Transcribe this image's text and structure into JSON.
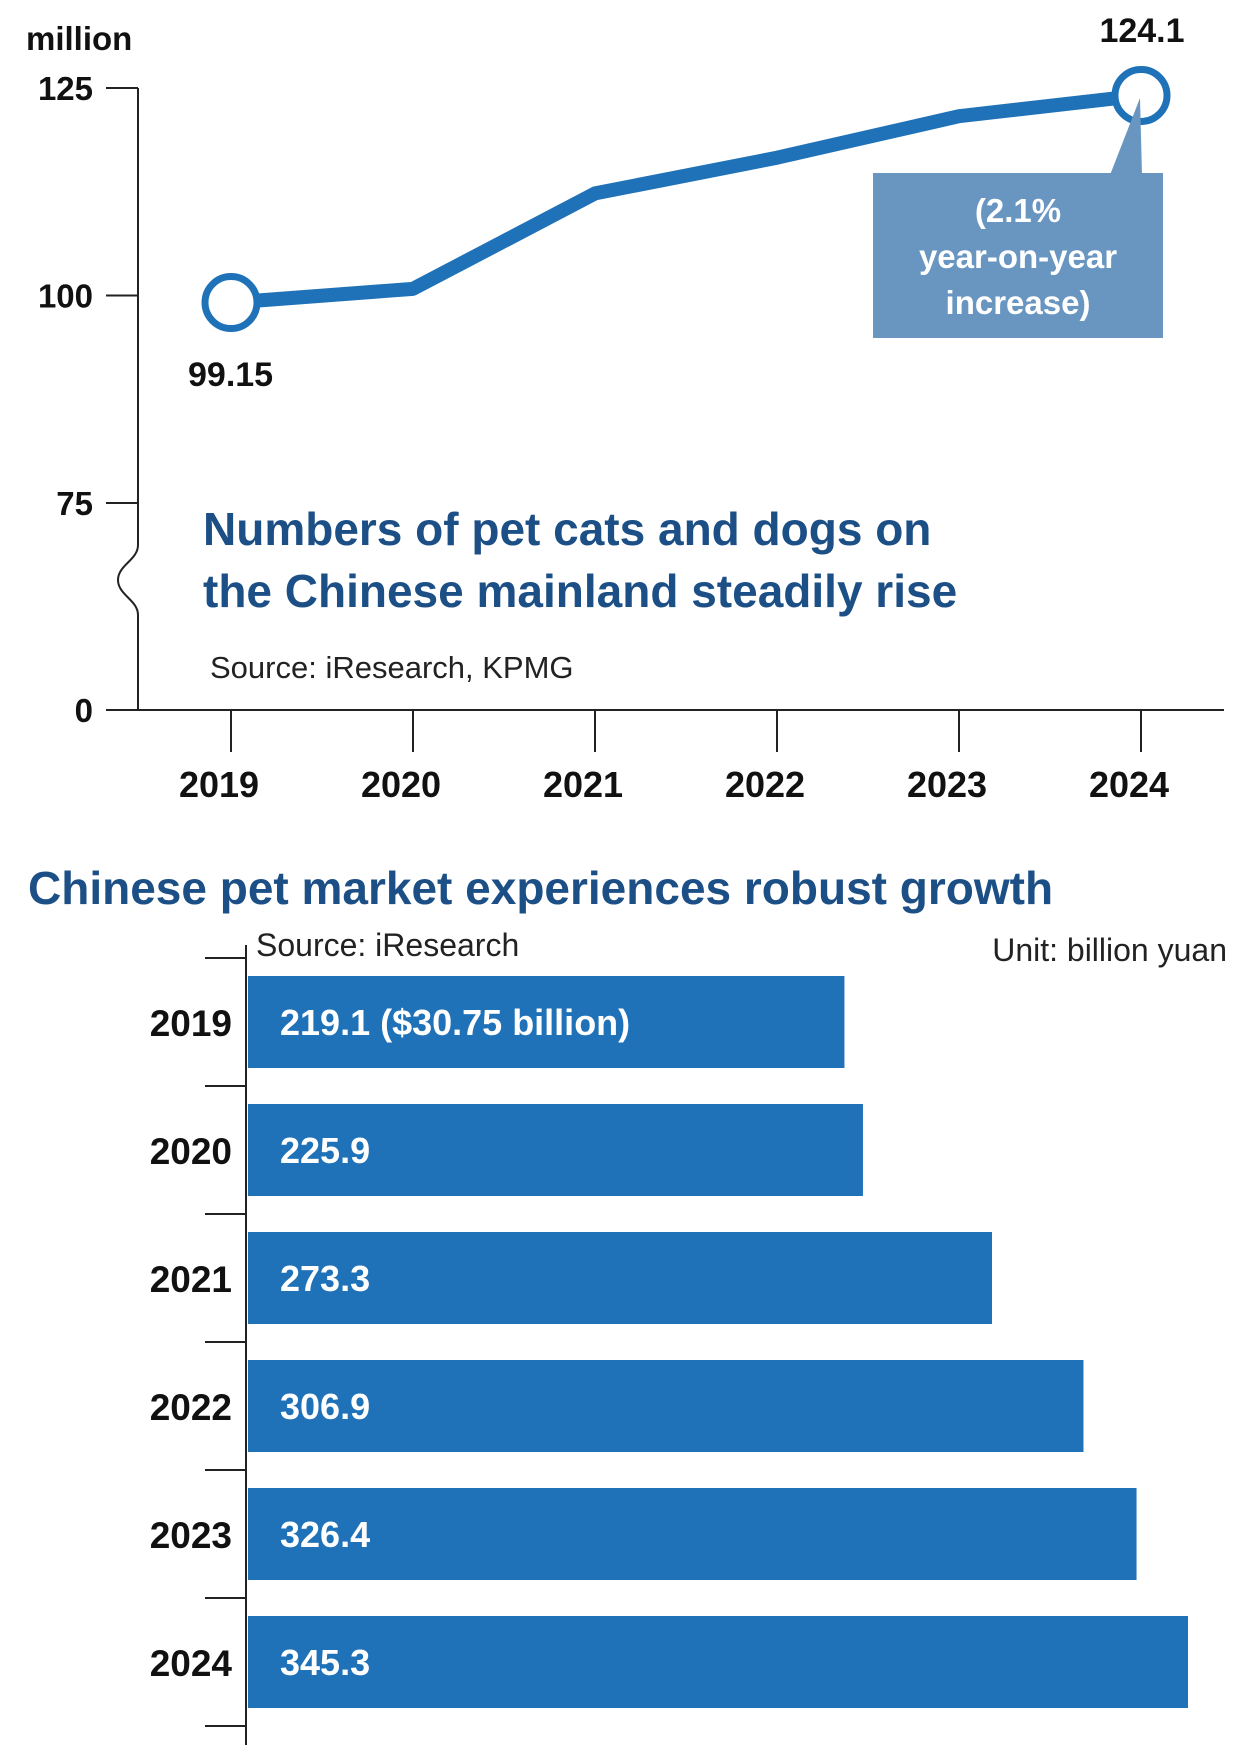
{
  "chart_data": [
    {
      "type": "line",
      "title": "Numbers of pet cats and dogs on the Chinese mainland steadily rise",
      "title_lines": [
        "Numbers of pet cats and dogs on",
        "the Chinese mainland steadily rise"
      ],
      "source": "Source: iResearch, KPMG",
      "unit_label": "million",
      "y_ticks": [
        "125",
        "100",
        "75",
        "0"
      ],
      "y_tick_values": [
        125,
        100,
        75,
        0
      ],
      "axis_break": true,
      "ylim": [
        0,
        125
      ],
      "x": [
        "2019",
        "2020",
        "2021",
        "2022",
        "2023",
        "2024"
      ],
      "series": [
        {
          "values": [
            99.15,
            100.8,
            112.3,
            116.6,
            121.6,
            124.1
          ]
        }
      ],
      "data_labels": {
        "first": "99.15",
        "last": "124.1"
      },
      "annotation": [
        "(2.1%",
        "year-on-year",
        "increase)"
      ],
      "colors": {
        "line": "#1f72b8",
        "annotation_box": "#6996c1",
        "title": "#1c4f86"
      }
    },
    {
      "type": "bar",
      "orientation": "horizontal",
      "title": "Chinese pet market experiences robust growth",
      "source": "Source: iResearch",
      "unit": "Unit:  billion yuan",
      "categories": [
        "2019",
        "2020",
        "2021",
        "2022",
        "2023",
        "2024"
      ],
      "values": [
        219.1,
        225.9,
        273.3,
        306.9,
        326.4,
        345.3
      ],
      "bar_labels": [
        "219.1 ($30.75 billion)",
        "225.9",
        "273.3",
        "306.9",
        "326.4",
        "345.3"
      ],
      "colors": {
        "bar": "#1f72b8",
        "title": "#1c4f86"
      }
    }
  ]
}
